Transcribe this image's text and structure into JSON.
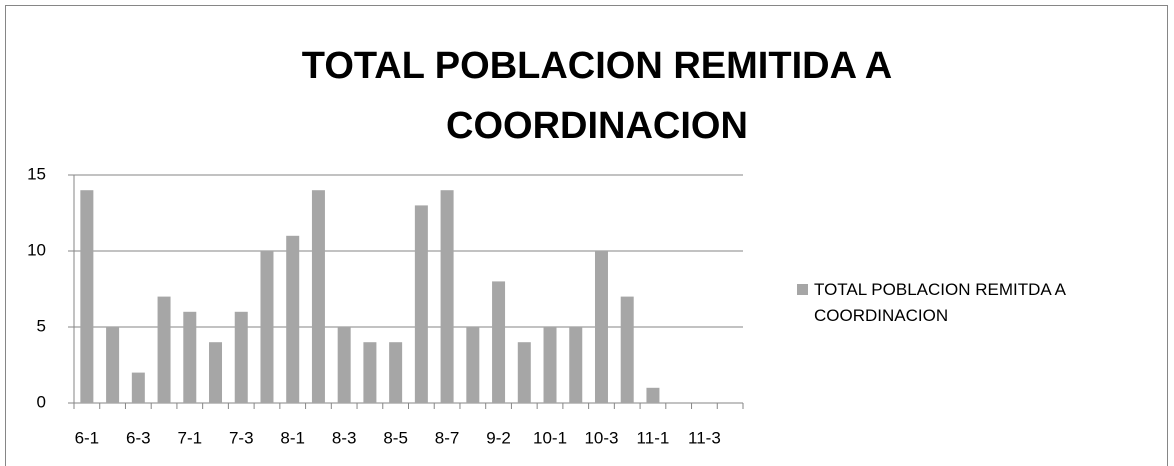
{
  "chart_data": {
    "type": "bar",
    "title": "TOTAL POBLACION REMITIDA A COORDINACION",
    "categories": [
      "6-1",
      null,
      "6-3",
      null,
      "7-1",
      null,
      "7-3",
      null,
      "8-1",
      null,
      "8-3",
      null,
      "8-5",
      null,
      "8-7",
      null,
      "9-2",
      null,
      "10-1",
      null,
      "10-3",
      null,
      "11-1",
      null,
      "11-3",
      null
    ],
    "series": [
      {
        "name": "TOTAL POBLACION REMITDA A COORDINACION",
        "color": "#a6a6a6",
        "values": [
          14,
          5,
          2,
          7,
          6,
          4,
          6,
          10,
          11,
          14,
          5,
          4,
          4,
          13,
          14,
          5,
          8,
          4,
          5,
          5,
          10,
          7,
          1,
          0,
          0,
          0
        ]
      }
    ],
    "ylim": [
      0,
      15
    ],
    "yticks": [
      0,
      5,
      10,
      15
    ],
    "grid": true,
    "legend": "right"
  }
}
